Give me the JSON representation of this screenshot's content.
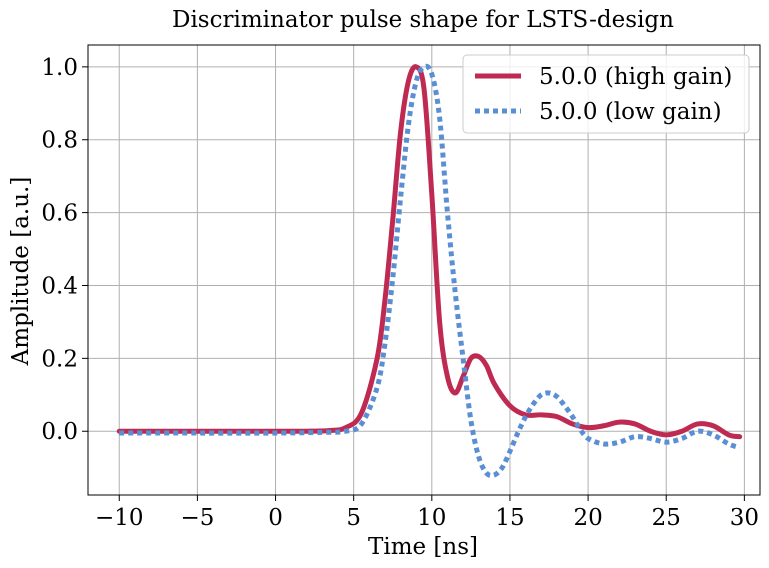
{
  "chart_data": {
    "type": "line",
    "title": "Discriminator pulse shape for LSTS-design",
    "xlabel": "Time [ns]",
    "ylabel": "Amplitude [a.u.]",
    "xlim": [
      -12.0,
      31.0
    ],
    "ylim": [
      -0.175,
      1.06
    ],
    "xticks": [
      -10,
      -5,
      0,
      5,
      10,
      15,
      20,
      25,
      30
    ],
    "xtick_labels": [
      "−10",
      "−5",
      "0",
      "5",
      "10",
      "15",
      "20",
      "25",
      "30"
    ],
    "yticks": [
      0.0,
      0.2,
      0.4,
      0.6,
      0.8,
      1.0
    ],
    "ytick_labels": [
      "0.0",
      "0.2",
      "0.4",
      "0.6",
      "0.8",
      "1.0"
    ],
    "grid": true,
    "legend_position": "top-right",
    "series": [
      {
        "name": "5.0.0 (high gain)",
        "color": "#be2a52",
        "style": "solid",
        "x": [
          -10,
          -5,
          0,
          2,
          3.5,
          4.5,
          5.5,
          6.5,
          7.0,
          7.5,
          8.0,
          8.5,
          9.0,
          9.5,
          10.0,
          10.5,
          11.0,
          11.5,
          12.0,
          12.5,
          13.0,
          13.5,
          14.0,
          15.0,
          16.0,
          17.0,
          18.0,
          19.0,
          20.0,
          21.0,
          22.0,
          23.0,
          24.0,
          25.0,
          26.0,
          27.0,
          28.0,
          29.0,
          29.7
        ],
        "y": [
          0.0,
          0.0,
          0.0,
          0.0,
          0.002,
          0.01,
          0.05,
          0.2,
          0.36,
          0.58,
          0.82,
          0.96,
          1.0,
          0.94,
          0.65,
          0.3,
          0.15,
          0.105,
          0.15,
          0.2,
          0.205,
          0.18,
          0.13,
          0.07,
          0.045,
          0.045,
          0.04,
          0.02,
          0.01,
          0.015,
          0.025,
          0.02,
          0.0,
          -0.01,
          0.0,
          0.02,
          0.015,
          -0.01,
          -0.015
        ]
      },
      {
        "name": "5.0.0 (low gain)",
        "color": "#5b8fd4",
        "style": "dotted",
        "x": [
          -10,
          -5,
          0,
          3,
          4.5,
          5.5,
          6.5,
          7.0,
          7.5,
          8.0,
          8.5,
          9.0,
          9.5,
          10.0,
          10.5,
          11.0,
          11.5,
          12.0,
          12.5,
          13.0,
          13.5,
          14.0,
          14.5,
          15.0,
          15.5,
          16.0,
          16.5,
          17.0,
          17.5,
          18.0,
          18.5,
          19.0,
          19.5,
          20.0,
          21.0,
          22.0,
          23.0,
          24.0,
          25.0,
          26.0,
          27.0,
          28.0,
          29.0,
          29.7
        ],
        "y": [
          -0.005,
          -0.005,
          -0.005,
          -0.003,
          0.0,
          0.02,
          0.12,
          0.24,
          0.42,
          0.64,
          0.84,
          0.96,
          1.0,
          0.98,
          0.86,
          0.6,
          0.38,
          0.2,
          0.03,
          -0.07,
          -0.115,
          -0.12,
          -0.1,
          -0.055,
          -0.005,
          0.04,
          0.075,
          0.1,
          0.105,
          0.095,
          0.07,
          0.04,
          0.005,
          -0.02,
          -0.035,
          -0.03,
          -0.015,
          -0.02,
          -0.03,
          -0.02,
          0.0,
          -0.01,
          -0.035,
          -0.045
        ]
      }
    ]
  }
}
